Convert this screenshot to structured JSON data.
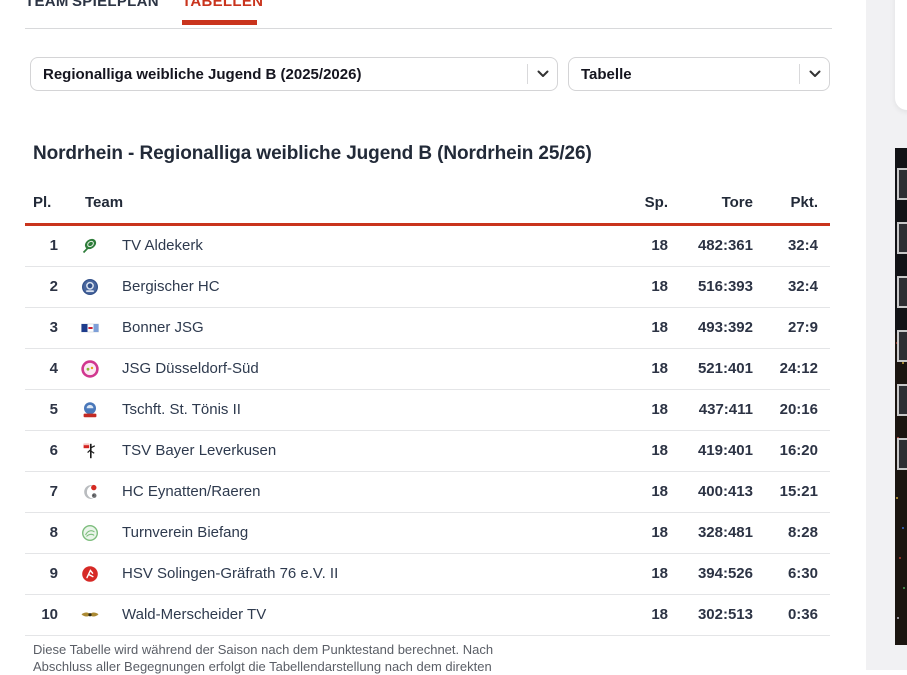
{
  "tabs": {
    "items": [
      {
        "label": "TEAM",
        "active": false
      },
      {
        "label": "SPIELPLAN",
        "active": false
      },
      {
        "label": "TABELLEN",
        "active": true
      }
    ]
  },
  "filters": {
    "league_select": {
      "value": "Regionalliga weibliche Jugend B (2025/2026)"
    },
    "view_select": {
      "value": "Tabelle"
    }
  },
  "page_title": "Nordrhein - Regionalliga weibliche Jugend B (Nordrhein 25/26)",
  "table": {
    "columns": {
      "rank": "Pl.",
      "team": "Team",
      "games": "Sp.",
      "goals": "Tore",
      "points": "Pkt."
    },
    "rows": [
      {
        "rank": "1",
        "team": "TV Aldekerk",
        "games": "18",
        "goals": "482:361",
        "points": "32:4",
        "logo": "tv-aldekerk-logo"
      },
      {
        "rank": "2",
        "team": "Bergischer HC",
        "games": "18",
        "goals": "516:393",
        "points": "32:4",
        "logo": "bergischer-hc-logo"
      },
      {
        "rank": "3",
        "team": "Bonner JSG",
        "games": "18",
        "goals": "493:392",
        "points": "27:9",
        "logo": "bonner-jsg-logo"
      },
      {
        "rank": "4",
        "team": "JSG Düsseldorf-Süd",
        "games": "18",
        "goals": "521:401",
        "points": "24:12",
        "logo": "jsg-duesseldorf-sued-logo"
      },
      {
        "rank": "5",
        "team": "Tschft. St. Tönis II",
        "games": "18",
        "goals": "437:411",
        "points": "20:16",
        "logo": "tschft-st-toenis-logo"
      },
      {
        "rank": "6",
        "team": "TSV Bayer Leverkusen",
        "games": "18",
        "goals": "419:401",
        "points": "16:20",
        "logo": "tsv-bayer-leverkusen-logo"
      },
      {
        "rank": "7",
        "team": "HC Eynatten/Raeren",
        "games": "18",
        "goals": "400:413",
        "points": "15:21",
        "logo": "hc-eynatten-raeren-logo"
      },
      {
        "rank": "8",
        "team": "Turnverein Biefang",
        "games": "18",
        "goals": "328:481",
        "points": "8:28",
        "logo": "turnverein-biefang-logo"
      },
      {
        "rank": "9",
        "team": "HSV Solingen-Gräfrath 76 e.V. II",
        "games": "18",
        "goals": "394:526",
        "points": "6:30",
        "logo": "hsv-solingen-graefrath-logo"
      },
      {
        "rank": "10",
        "team": "Wald-Merscheider TV",
        "games": "18",
        "goals": "302:513",
        "points": "0:36",
        "logo": "wald-merscheider-tv-logo"
      }
    ]
  },
  "footnote": "Diese Tabelle wird während der Saison nach dem Punktestand berechnet. Nach Abschluss aller Begegnungen erfolgt die Tabellendarstellung nach dem direkten",
  "colors": {
    "accent_red": "#c9341d",
    "text_navy": "#2c3344",
    "separator_gray": "#e4e5e7",
    "page_gutter_gray": "#f1f1f3"
  },
  "right_panel": {
    "thumbnail_count": 6
  }
}
